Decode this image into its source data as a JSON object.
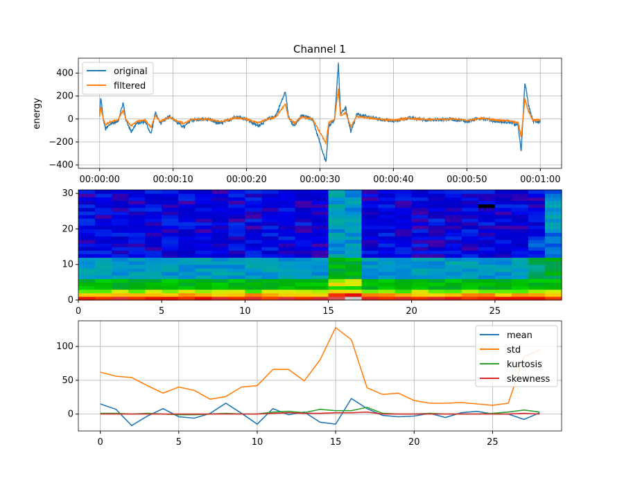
{
  "chart_data": [
    {
      "type": "line",
      "title": "Channel 1",
      "ylabel": "energy",
      "xlabel": "",
      "x_tick_labels": [
        "00:00:00",
        "00:00:10",
        "00:00:20",
        "00:00:30",
        "00:00:40",
        "00:00:50",
        "00:01:00"
      ],
      "x_range_seconds": [
        -2.9,
        62.9
      ],
      "ylim": [
        -430,
        530
      ],
      "y_ticks": [
        -400,
        -200,
        0,
        200,
        400
      ],
      "grid": true,
      "legend_position": "top-left",
      "series": [
        {
          "name": "original",
          "color": "#1f77b4"
        },
        {
          "name": "filtered",
          "color": "#ff7f0e"
        }
      ],
      "keypoints_seconds_value": [
        [
          0,
          40
        ],
        [
          0.15,
          190
        ],
        [
          0.5,
          0
        ],
        [
          0.8,
          -90
        ],
        [
          1.5,
          -40
        ],
        [
          2.5,
          -20
        ],
        [
          3.2,
          140
        ],
        [
          3.6,
          -10
        ],
        [
          4.3,
          -110
        ],
        [
          5.0,
          -40
        ],
        [
          6.2,
          -20
        ],
        [
          7.0,
          -130
        ],
        [
          7.6,
          60
        ],
        [
          8.2,
          -40
        ],
        [
          9.5,
          30
        ],
        [
          10.5,
          -30
        ],
        [
          11.5,
          -70
        ],
        [
          12.4,
          -10
        ],
        [
          14.5,
          0
        ],
        [
          16.5,
          -40
        ],
        [
          18.5,
          20
        ],
        [
          20.0,
          0
        ],
        [
          21.5,
          -60
        ],
        [
          23.0,
          0
        ],
        [
          24.0,
          30
        ],
        [
          25.3,
          240
        ],
        [
          25.7,
          20
        ],
        [
          26.5,
          -60
        ],
        [
          27.5,
          30
        ],
        [
          29.0,
          0
        ],
        [
          30.8,
          -380
        ],
        [
          31.2,
          -60
        ],
        [
          32.0,
          0
        ],
        [
          32.5,
          480
        ],
        [
          32.8,
          50
        ],
        [
          33.5,
          100
        ],
        [
          34.2,
          -120
        ],
        [
          35.0,
          40
        ],
        [
          36.5,
          20
        ],
        [
          38.0,
          0
        ],
        [
          40.0,
          -20
        ],
        [
          42.0,
          10
        ],
        [
          45.0,
          -10
        ],
        [
          48.0,
          0
        ],
        [
          50.0,
          -20
        ],
        [
          52.0,
          10
        ],
        [
          54.0,
          -20
        ],
        [
          56.0,
          -30
        ],
        [
          57.0,
          -60
        ],
        [
          57.4,
          -290
        ],
        [
          57.9,
          320
        ],
        [
          58.4,
          120
        ],
        [
          59.0,
          -20
        ],
        [
          60.0,
          -20
        ]
      ]
    },
    {
      "type": "heatmap",
      "xlim": [
        0,
        29
      ],
      "ylim": [
        0,
        31
      ],
      "x_ticks": [
        0,
        5,
        10,
        15,
        20,
        25
      ],
      "y_ticks": [
        0,
        10,
        20,
        30
      ],
      "colormap": "nipy_spectral",
      "n_columns": 29,
      "n_rows": 31
    },
    {
      "type": "line",
      "x": [
        0,
        1,
        2,
        3,
        4,
        5,
        6,
        7,
        8,
        9,
        10,
        11,
        12,
        13,
        14,
        15,
        16,
        17,
        18,
        19,
        20,
        21,
        22,
        23,
        24,
        25,
        26,
        27,
        28
      ],
      "x_ticks": [
        0,
        5,
        10,
        15,
        20,
        25
      ],
      "y_ticks": [
        0,
        50,
        100
      ],
      "ylim": [
        -25,
        138
      ],
      "grid": true,
      "legend_position": "top-right",
      "series": [
        {
          "name": "mean",
          "color": "#1f77b4",
          "values": [
            15,
            7,
            -17,
            -3,
            8,
            -4,
            -6,
            1,
            16,
            1,
            -15,
            8,
            -1,
            3,
            -12,
            -15,
            23,
            8,
            -2,
            -4,
            -3,
            1,
            -5,
            2,
            4,
            0,
            0,
            -8,
            2
          ]
        },
        {
          "name": "std",
          "color": "#ff7f0e",
          "values": [
            62,
            56,
            54,
            42,
            31,
            40,
            35,
            22,
            26,
            40,
            42,
            66,
            66,
            49,
            80,
            128,
            110,
            39,
            29,
            31,
            20,
            16,
            16,
            17,
            15,
            13,
            16,
            85,
            95
          ]
        },
        {
          "name": "kurtosis",
          "color": "#2ca02c",
          "values": [
            1,
            1,
            0,
            1,
            0,
            -1,
            -1,
            0,
            1,
            0,
            0,
            3,
            4,
            2,
            7,
            5,
            5,
            10,
            1,
            0,
            0,
            1,
            0,
            0,
            0,
            1,
            3,
            6,
            3
          ]
        },
        {
          "name": "skewness",
          "color": "#d62728",
          "values": [
            0,
            0,
            0,
            0,
            0,
            0,
            0,
            0,
            0,
            0,
            0,
            1,
            2,
            1,
            1,
            2,
            2,
            3,
            0,
            0,
            0,
            0,
            0,
            0,
            0,
            0,
            0,
            1,
            0
          ]
        }
      ]
    }
  ]
}
